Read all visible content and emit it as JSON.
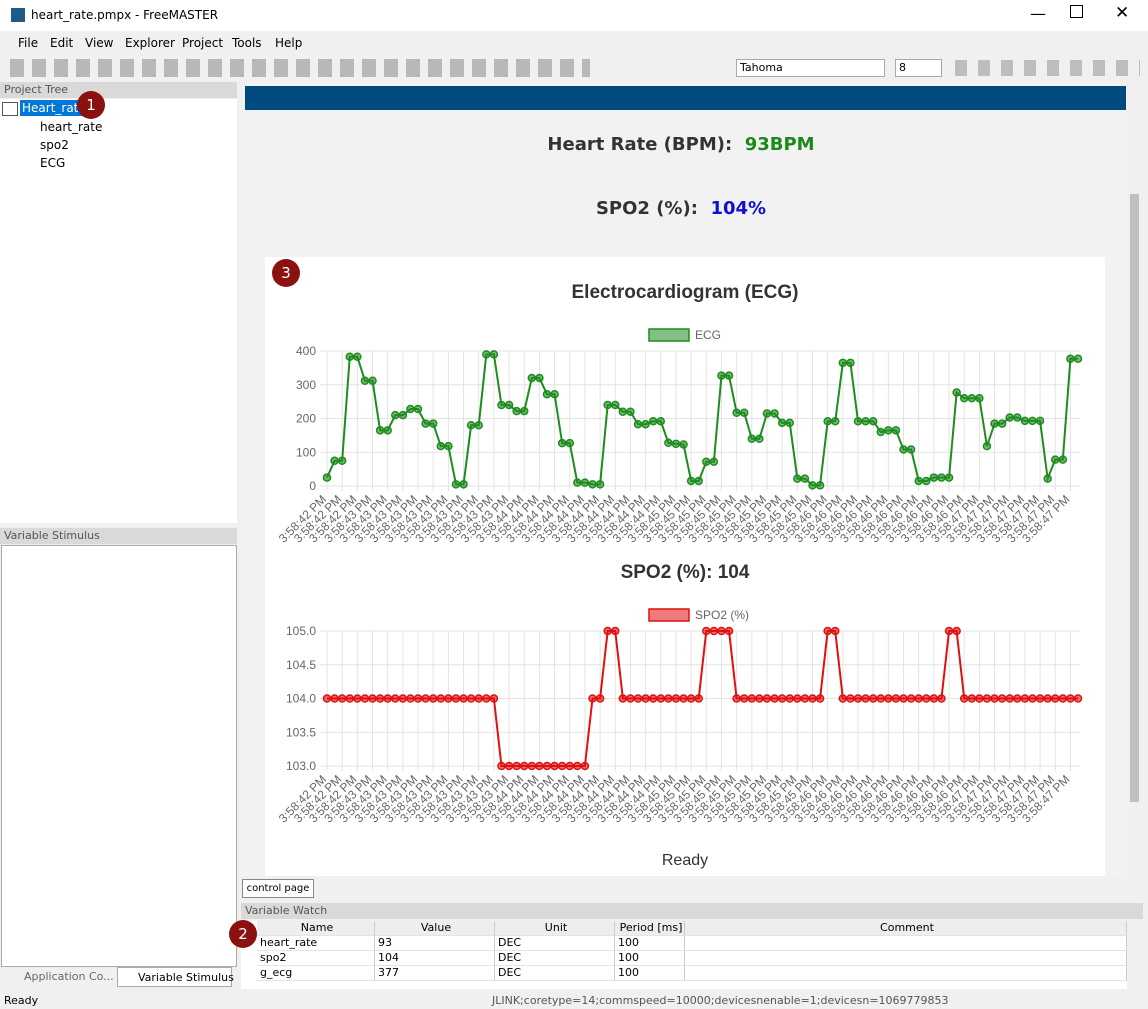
{
  "window": {
    "title": "heart_rate.pmpx - FreeMASTER"
  },
  "menu": [
    "File",
    "Edit",
    "View",
    "Explorer",
    "Project",
    "Tools",
    "Help"
  ],
  "toolbar": {
    "font": "Tahoma",
    "size": "8"
  },
  "project_tree": {
    "title": "Project Tree",
    "items": [
      "Heart_rate",
      "heart_rate",
      "spo2",
      "ECG"
    ]
  },
  "variable_stimulus": {
    "title": "Variable Stimulus"
  },
  "left_tabs": [
    "Application Co...",
    "Variable Stimulus"
  ],
  "badges": [
    "1",
    "2",
    "3"
  ],
  "control_page": {
    "heart_rate_label": "Heart Rate (BPM):",
    "heart_rate_value": "93BPM",
    "spo2_label": "SPO2 (%):",
    "spo2_value": "104%",
    "status": "Ready",
    "tab": "control page"
  },
  "chart_data": [
    {
      "type": "line",
      "title": "Electrocardiogram (ECG)",
      "categories": [
        "3:58:42 PM",
        null,
        "3:58:42 PM",
        null,
        "3:58:42 PM",
        null,
        "3:58:43 PM",
        null,
        "3:58:43 PM",
        null,
        "3:58:43 PM",
        null,
        "3:58:43 PM",
        null,
        "3:58:43 PM",
        null,
        "3:58:43 PM",
        null,
        "3:58:43 PM",
        null,
        "3:58:43 PM",
        null,
        "3:58:43 PM",
        null,
        "3:58:43 PM",
        null,
        "3:58:44 PM",
        null,
        "3:58:44 PM",
        null,
        "3:58:44 PM",
        null,
        "3:58:44 PM",
        null,
        "3:58:44 PM",
        null,
        "3:58:44 PM",
        null,
        "3:58:44 PM",
        null,
        "3:58:44 PM",
        null,
        "3:58:44 PM",
        null,
        "3:58:44 PM",
        null,
        "3:58:45 PM",
        null,
        "3:58:45 PM",
        null,
        "3:58:45 PM",
        null,
        "3:58:45 PM",
        null,
        "3:58:45 PM",
        null,
        "3:58:45 PM",
        null,
        "3:58:45 PM",
        null,
        "3:58:45 PM",
        null,
        "3:58:45 PM",
        null,
        "3:58:45 PM",
        null,
        "3:58:46 PM",
        null,
        "3:58:46 PM",
        null,
        "3:58:46 PM",
        null,
        "3:58:46 PM",
        null,
        "3:58:46 PM",
        null,
        "3:58:46 PM",
        null,
        "3:58:46 PM",
        null,
        "3:58:46 PM",
        null,
        "3:58:46 PM",
        null,
        "3:58:46 PM",
        null,
        "3:58:47 PM",
        null,
        "3:58:47 PM",
        null,
        "3:58:47 PM",
        null,
        "3:58:47 PM",
        null,
        "3:58:47 PM",
        null,
        "3:58:47 PM",
        null,
        "3:58:47 PM",
        null
      ],
      "series": [
        {
          "name": "ECG",
          "color": "#1e8c1e",
          "values": [
            25,
            75,
            75,
            383,
            383,
            312,
            312,
            165,
            165,
            210,
            210,
            228,
            228,
            185,
            185,
            118,
            118,
            5,
            5,
            180,
            180,
            390,
            390,
            240,
            240,
            222,
            222,
            320,
            320,
            272,
            272,
            127,
            127,
            10,
            10,
            5,
            5,
            240,
            240,
            220,
            220,
            183,
            183,
            192,
            192,
            128,
            125,
            123,
            15,
            15,
            72,
            72,
            327,
            327,
            217,
            217,
            140,
            140,
            215,
            215,
            187,
            187,
            22,
            22,
            2,
            2,
            192,
            192,
            365,
            365,
            192,
            192,
            192,
            160,
            165,
            165,
            108,
            108,
            15,
            15,
            25,
            25,
            25,
            277,
            260,
            260,
            260,
            118,
            185,
            185,
            203,
            203,
            193,
            193,
            193,
            22,
            78,
            78,
            377,
            377
          ]
        }
      ],
      "ylim": [
        0,
        400
      ],
      "yticks": [
        0,
        100,
        200,
        300,
        400
      ],
      "grid": true
    },
    {
      "type": "line",
      "title": "SPO2 (%): 104",
      "categories": [
        "3:58:42 PM",
        null,
        "3:58:42 PM",
        null,
        "3:58:42 PM",
        null,
        "3:58:43 PM",
        null,
        "3:58:43 PM",
        null,
        "3:58:43 PM",
        null,
        "3:58:43 PM",
        null,
        "3:58:43 PM",
        null,
        "3:58:43 PM",
        null,
        "3:58:43 PM",
        null,
        "3:58:43 PM",
        null,
        "3:58:43 PM",
        null,
        "3:58:43 PM",
        null,
        "3:58:44 PM",
        null,
        "3:58:44 PM",
        null,
        "3:58:44 PM",
        null,
        "3:58:44 PM",
        null,
        "3:58:44 PM",
        null,
        "3:58:44 PM",
        null,
        "3:58:44 PM",
        null,
        "3:58:44 PM",
        null,
        "3:58:44 PM",
        null,
        "3:58:44 PM",
        null,
        "3:58:45 PM",
        null,
        "3:58:45 PM",
        null,
        "3:58:45 PM",
        null,
        "3:58:45 PM",
        null,
        "3:58:45 PM",
        null,
        "3:58:45 PM",
        null,
        "3:58:45 PM",
        null,
        "3:58:45 PM",
        null,
        "3:58:45 PM",
        null,
        "3:58:45 PM",
        null,
        "3:58:46 PM",
        null,
        "3:58:46 PM",
        null,
        "3:58:46 PM",
        null,
        "3:58:46 PM",
        null,
        "3:58:46 PM",
        null,
        "3:58:46 PM",
        null,
        "3:58:46 PM",
        null,
        "3:58:46 PM",
        null,
        "3:58:46 PM",
        null,
        "3:58:46 PM",
        null,
        "3:58:47 PM",
        null,
        "3:58:47 PM",
        null,
        "3:58:47 PM",
        null,
        "3:58:47 PM",
        null,
        "3:58:47 PM",
        null,
        "3:58:47 PM",
        null,
        "3:58:47 PM",
        null
      ],
      "series": [
        {
          "name": "SPO2 (%)",
          "color": "#e01010",
          "values": [
            104,
            104,
            104,
            104,
            104,
            104,
            104,
            104,
            104,
            104,
            104,
            104,
            104,
            104,
            104,
            104,
            104,
            104,
            104,
            104,
            104,
            104,
            104,
            103,
            103,
            103,
            103,
            103,
            103,
            103,
            103,
            103,
            103,
            103,
            103,
            104,
            104,
            105,
            105,
            104,
            104,
            104,
            104,
            104,
            104,
            104,
            104,
            104,
            104,
            104,
            105,
            105,
            105,
            105,
            104,
            104,
            104,
            104,
            104,
            104,
            104,
            104,
            104,
            104,
            104,
            104,
            105,
            105,
            104,
            104,
            104,
            104,
            104,
            104,
            104,
            104,
            104,
            104,
            104,
            104,
            104,
            104,
            105,
            105,
            104,
            104,
            104,
            104,
            104,
            104,
            104,
            104,
            104,
            104,
            104,
            104,
            104,
            104,
            104,
            104
          ]
        }
      ],
      "ylim": [
        103,
        105
      ],
      "yticks": [
        {
          "value": 103,
          "label": "103.0"
        },
        103.5,
        {
          "value": 104,
          "label": "104.0"
        },
        104.5,
        {
          "value": 105,
          "label": "105.0"
        }
      ],
      "grid": true
    }
  ],
  "variable_watch": {
    "title": "Variable Watch",
    "columns": [
      "Name",
      "Value",
      "Unit",
      "Period [ms]",
      "Comment"
    ],
    "rows": [
      [
        "heart_rate",
        "93",
        "DEC",
        "100"
      ],
      [
        "spo2",
        "104",
        "DEC",
        "100"
      ],
      [
        "g_ecg",
        "377",
        "DEC",
        "100"
      ]
    ]
  },
  "status_bar": {
    "left": "Ready",
    "right": "JLINK;coretype=14;commspeed=10000;devicesnenable=1;devicesn=1069779853"
  }
}
